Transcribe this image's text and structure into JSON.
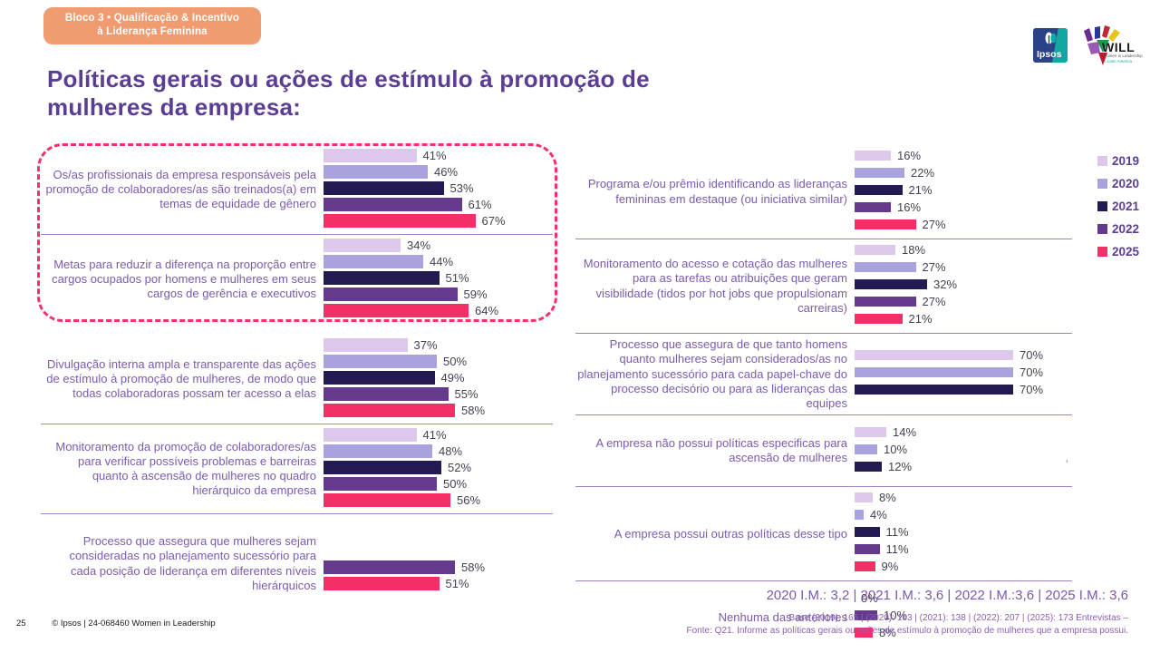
{
  "badge": {
    "line1": "Bloco 3 • Qualificação & Incentivo",
    "line2": "à Liderança Feminina"
  },
  "title": {
    "line1": "Políticas gerais ou ações de estímulo à promoção de",
    "line2": "mulheres da empresa:"
  },
  "logos": {
    "ipsos": "Ipsos",
    "will": "WILL",
    "will_sub1": "Women in Leadership",
    "will_sub2": "in Latin America"
  },
  "legend": [
    {
      "label": "2019",
      "color": "#ddc8ec"
    },
    {
      "label": "2020",
      "color": "#a8a2df"
    },
    {
      "label": "2021",
      "color": "#241a52"
    },
    {
      "label": "2022",
      "color": "#653a8e"
    },
    {
      "label": "2025",
      "color": "#f42f68"
    }
  ],
  "chart_data": {
    "type": "bar",
    "orientation": "horizontal",
    "unit": "%",
    "years": [
      "2019",
      "2020",
      "2021",
      "2022",
      "2025"
    ],
    "colors": {
      "2019": "#ddc8ec",
      "2020": "#a8a2df",
      "2021": "#241a52",
      "2022": "#653a8e",
      "2025": "#f42f68"
    },
    "xlim": [
      0,
      80
    ],
    "legend_position": "top-right",
    "groups_left": [
      {
        "label": "Os/as profissionais da empresa responsáveis pela promoção de colaboradores/as são treinados(a) em temas de equidade de gênero",
        "highlighted": true,
        "bars": [
          {
            "year": "2019",
            "value": 41
          },
          {
            "year": "2020",
            "value": 46
          },
          {
            "year": "2021",
            "value": 53
          },
          {
            "year": "2022",
            "value": 61
          },
          {
            "year": "2025",
            "value": 67
          }
        ]
      },
      {
        "label": "Metas para reduzir a diferença na proporção entre cargos ocupados por homens e mulheres em seus cargos de gerência e executivos",
        "highlighted": true,
        "bars": [
          {
            "year": "2019",
            "value": 34
          },
          {
            "year": "2020",
            "value": 44
          },
          {
            "year": "2021",
            "value": 51
          },
          {
            "year": "2022",
            "value": 59
          },
          {
            "year": "2025",
            "value": 64
          }
        ]
      },
      {
        "label": "Divulgação interna ampla e transparente das ações de estímulo à promoção de mulheres, de modo que todas colaboradoras possam ter acesso a elas",
        "highlighted": false,
        "bars": [
          {
            "year": "2019",
            "value": 37
          },
          {
            "year": "2020",
            "value": 50
          },
          {
            "year": "2021",
            "value": 49
          },
          {
            "year": "2022",
            "value": 55
          },
          {
            "year": "2025",
            "value": 58
          }
        ]
      },
      {
        "label": "Monitoramento da promoção de colaboradores/as para verificar possíveis problemas e barreiras quanto à ascensão de mulheres no quadro hierárquico da empresa",
        "highlighted": false,
        "bars": [
          {
            "year": "2019",
            "value": 41
          },
          {
            "year": "2020",
            "value": 48
          },
          {
            "year": "2021",
            "value": 52
          },
          {
            "year": "2022",
            "value": 50
          },
          {
            "year": "2025",
            "value": 56
          }
        ]
      },
      {
        "label": "Processo que assegura que mulheres sejam consideradas no planejamento sucessório para cada posição de liderança em diferentes níveis hierárquicos",
        "highlighted": false,
        "bars": [
          {
            "year": "2022",
            "value": 58
          },
          {
            "year": "2025",
            "value": 51
          }
        ]
      }
    ],
    "groups_right": [
      {
        "label": "Programa e/ou prêmio identificando as lideranças femininas em destaque (ou iniciativa similar)",
        "highlighted": false,
        "bars": [
          {
            "year": "2019",
            "value": 16
          },
          {
            "year": "2020",
            "value": 22
          },
          {
            "year": "2021",
            "value": 21
          },
          {
            "year": "2022",
            "value": 16
          },
          {
            "year": "2025",
            "value": 27
          }
        ]
      },
      {
        "label": "Monitoramento do acesso e cotação das mulheres para as tarefas ou atribuições que geram visibilidade (tidos por hot jobs que propulsionam carreiras)",
        "highlighted": false,
        "bars": [
          {
            "year": "2019",
            "value": 18
          },
          {
            "year": "2020",
            "value": 27
          },
          {
            "year": "2021",
            "value": 32
          },
          {
            "year": "2022",
            "value": 27
          },
          {
            "year": "2025",
            "value": 21
          }
        ]
      },
      {
        "label": "Processo que assegura de que tanto homens quanto mulheres sejam considerados/as no planejamento sucessório para cada papel-chave do processo decisório ou para as lideranças das equipes",
        "highlighted": false,
        "bars": [
          {
            "year": "2019",
            "value": 70
          },
          {
            "year": "2020",
            "value": 70
          },
          {
            "year": "2021",
            "value": 70
          }
        ]
      },
      {
        "label": "A empresa não possui políticas especificas para ascensão de mulheres",
        "highlighted": false,
        "bars": [
          {
            "year": "2019",
            "value": 14
          },
          {
            "year": "2020",
            "value": 10
          },
          {
            "year": "2021",
            "value": 12
          }
        ]
      },
      {
        "label": "A empresa possui outras políticas desse tipo",
        "highlighted": false,
        "bars": [
          {
            "year": "2019",
            "value": 8
          },
          {
            "year": "2020",
            "value": 4
          },
          {
            "year": "2021",
            "value": 11
          },
          {
            "year": "2022",
            "value": 11
          },
          {
            "year": "2025",
            "value": 9
          }
        ]
      },
      {
        "label": "Nenhuma das anteriores",
        "highlighted": false,
        "bars": [
          {
            "year": "2021",
            "value": 0
          },
          {
            "year": "2022",
            "value": 10
          },
          {
            "year": "2025",
            "value": 8
          }
        ]
      }
    ]
  },
  "footer": {
    "im_line": "2020 I.M.: 3,2 | 2021 I.M.: 3,6 | 2022 I.M.:3,6 | 2025 I.M.: 3,6",
    "base_line": "Base (2019): 165 | (2020): 163  | (2021): 138 | (2022): 207 | (2025): 173  Entrevistas –",
    "fonte_line": "Fonte: Q21. Informe as políticas gerais ou ações de estímulo à promoção de mulheres que a empresa possui.",
    "page_number": "25",
    "copyright": "© Ipsos | 24-068460 Women in Leadership",
    "stray_mark": "’"
  }
}
